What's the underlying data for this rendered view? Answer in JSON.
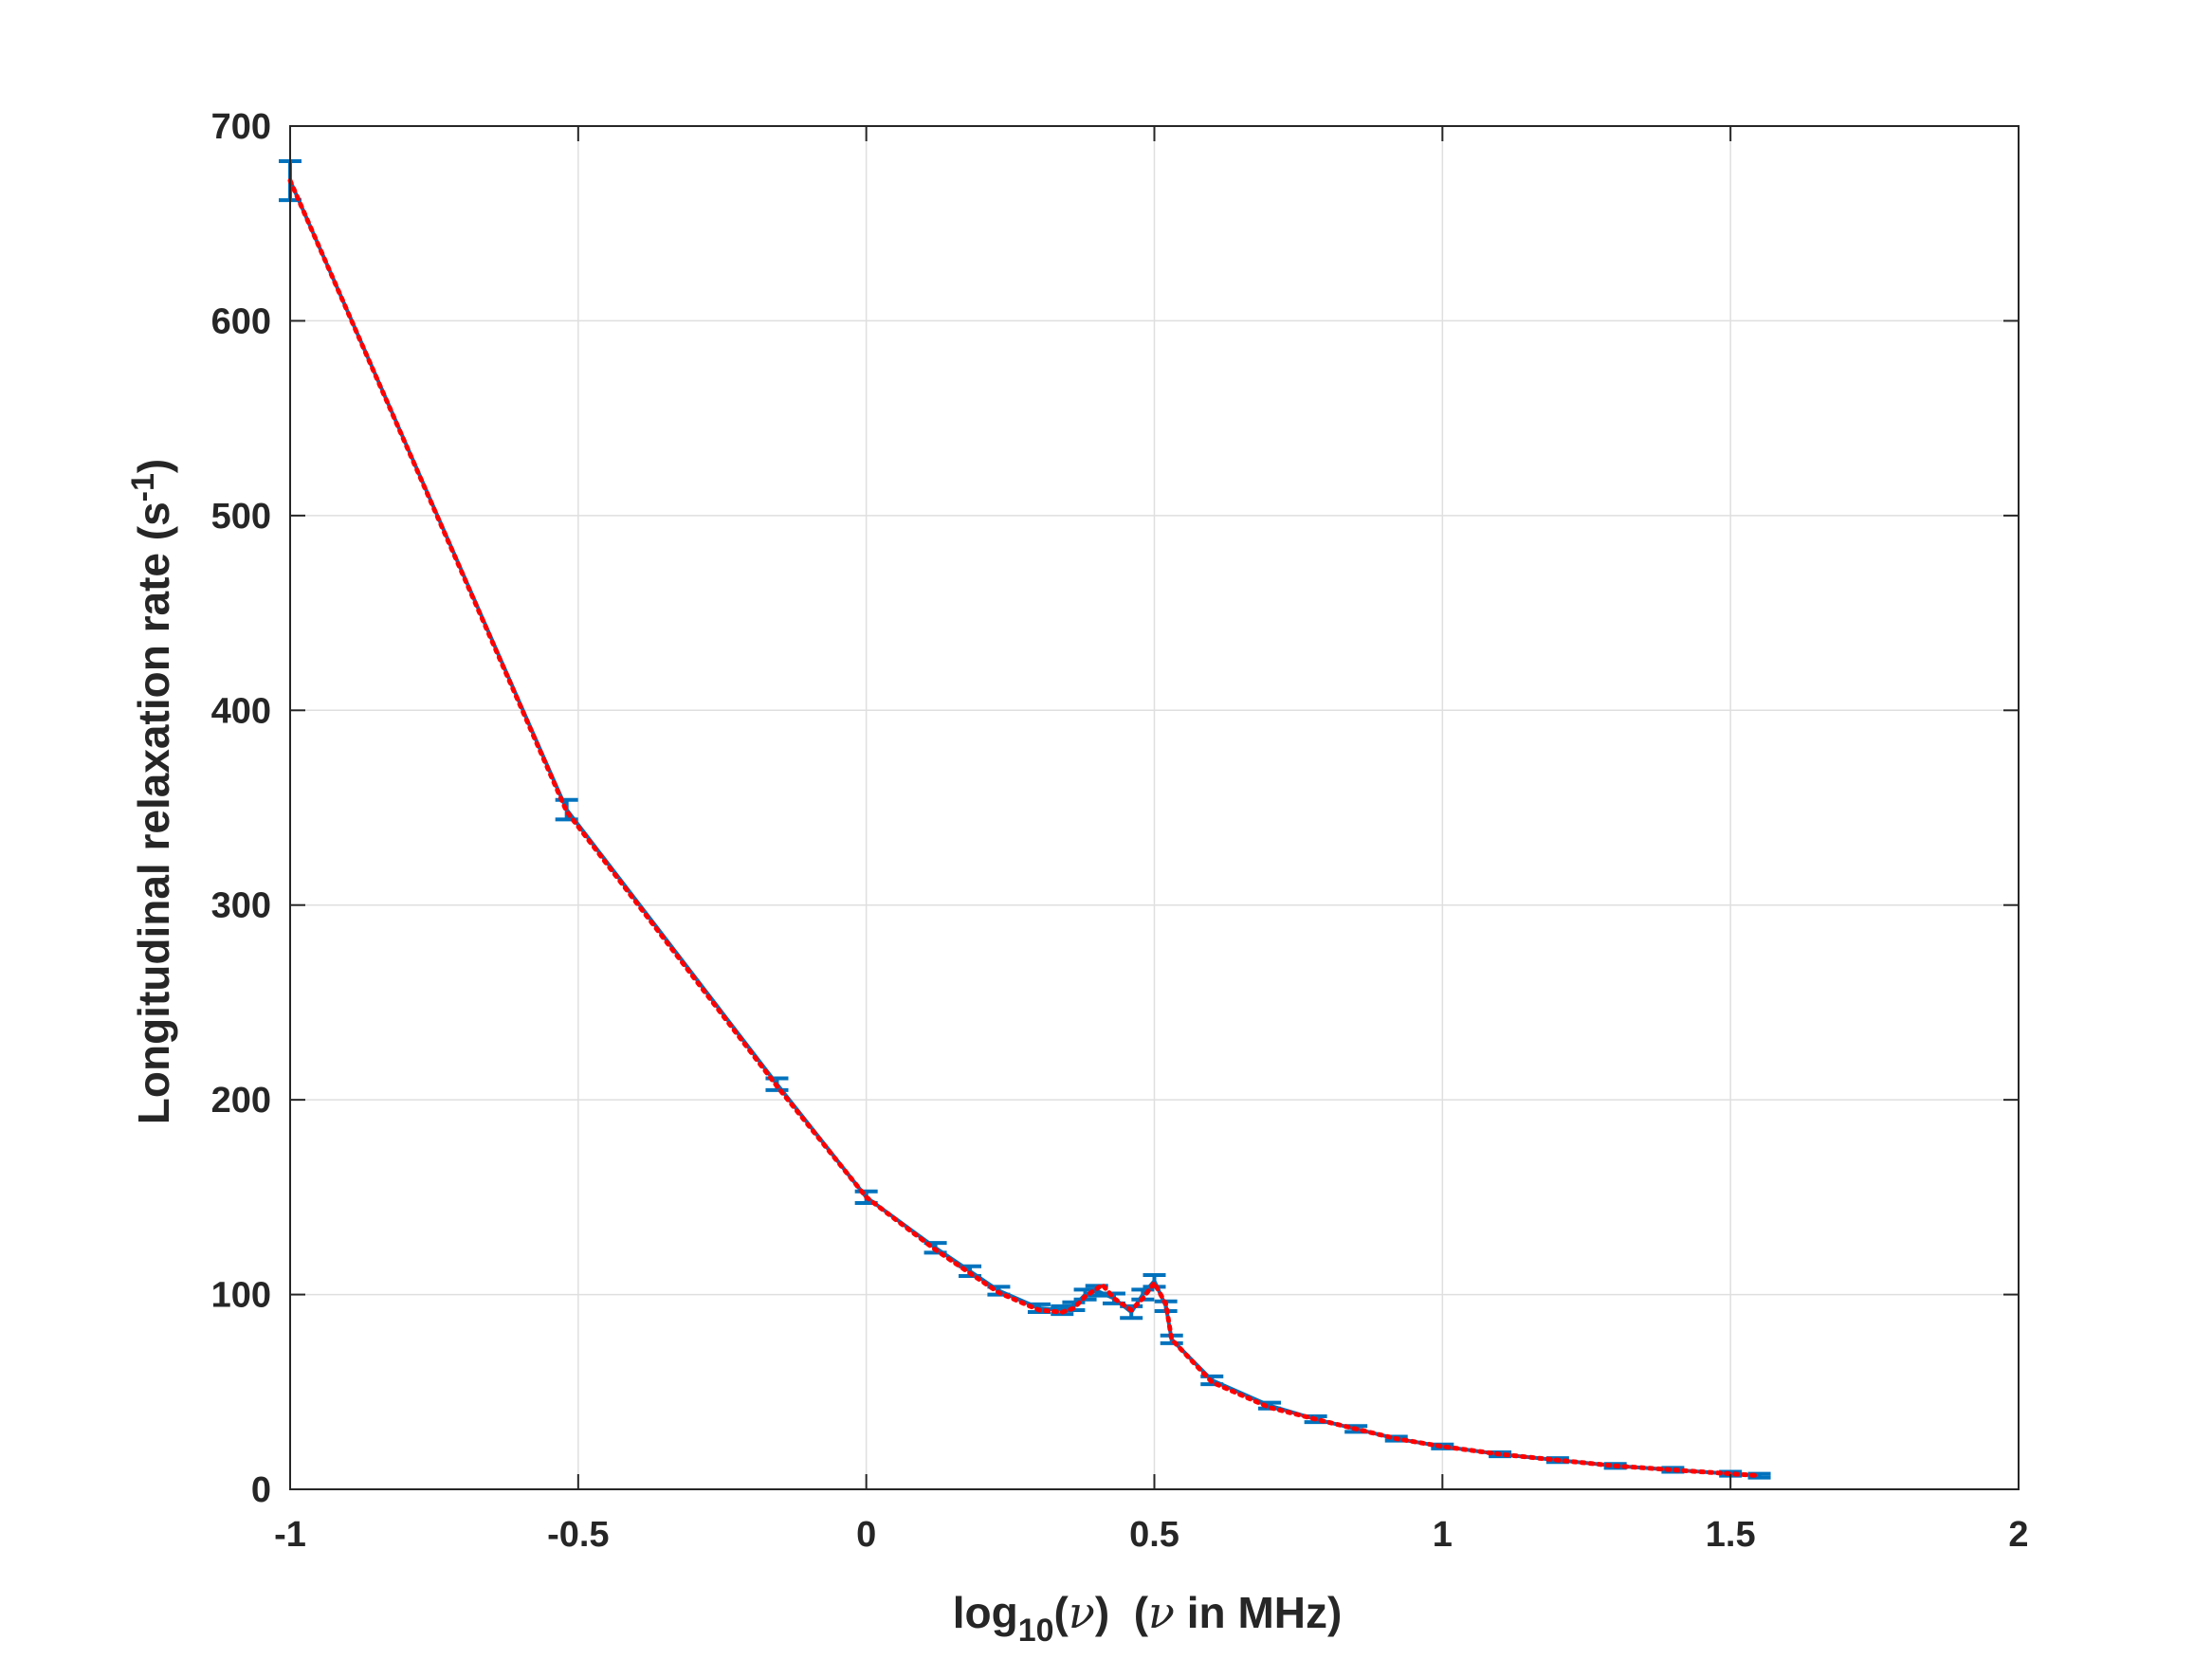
{
  "chart_data": {
    "type": "line",
    "title": "",
    "xlabel": {
      "prefix": "log",
      "subscript": "10",
      "open": "(",
      "symbol": "ν",
      "close": ")",
      "gap": "  (",
      "symbol2": "ν",
      "suffix": " in MHz)"
    },
    "ylabel": {
      "main": "Longitudinal relaxation rate (s",
      "superscript": "-1",
      "close": ")"
    },
    "xlim": [
      -1,
      2
    ],
    "ylim": [
      0,
      700
    ],
    "xticks": [
      "-1",
      "-0.5",
      "0",
      "0.5",
      "1",
      "1.5",
      "2"
    ],
    "xtick_values": [
      -1,
      -0.5,
      0,
      0.5,
      1,
      1.5,
      2
    ],
    "yticks": [
      "0",
      "100",
      "200",
      "300",
      "400",
      "500",
      "600",
      "700"
    ],
    "ytick_values": [
      0,
      100,
      200,
      300,
      400,
      500,
      600,
      700
    ],
    "grid": true,
    "box": true,
    "colors": {
      "measured": "#0072BD",
      "fit": "#FF0000",
      "axes": "#262626",
      "grid": "#DFDFDF"
    },
    "series": [
      {
        "style": "solid line with error bars",
        "x": [
          -1.0,
          -0.52,
          -0.155,
          0.0,
          0.12,
          0.18,
          0.23,
          0.3,
          0.34,
          0.36,
          0.38,
          0.4,
          0.43,
          0.46,
          0.48,
          0.5,
          0.52,
          0.53,
          0.6,
          0.7,
          0.78,
          0.85,
          0.92,
          1.0,
          1.1,
          1.2,
          1.3,
          1.4,
          1.5,
          1.55
        ],
        "y": [
          672,
          349,
          208,
          150,
          124,
          112,
          102,
          93,
          92,
          94,
          100,
          102,
          98,
          91,
          100,
          107,
          94,
          77,
          56,
          43,
          36,
          31,
          26,
          22,
          18,
          15,
          12,
          10,
          8,
          7
        ],
        "error": [
          10,
          5,
          3,
          3,
          2.5,
          2.5,
          2,
          2,
          2,
          2,
          2.5,
          2.5,
          2.5,
          3,
          2.5,
          3,
          2.5,
          2,
          2,
          1.5,
          1.5,
          1.5,
          1,
          1,
          1,
          1,
          1,
          1,
          1,
          1
        ]
      },
      {
        "style": "dotted line",
        "x": [
          -1.0,
          -0.52,
          -0.155,
          0.0,
          0.12,
          0.18,
          0.23,
          0.3,
          0.34,
          0.36,
          0.38,
          0.41,
          0.43,
          0.46,
          0.48,
          0.5,
          0.52,
          0.53,
          0.6,
          0.7,
          0.78,
          0.85,
          0.92,
          1.0,
          1.1,
          1.2,
          1.3,
          1.4,
          1.5,
          1.55
        ],
        "y": [
          672,
          348,
          207,
          150,
          123,
          111,
          101,
          92,
          91,
          93,
          99,
          105,
          98,
          92,
          98,
          106,
          95,
          77,
          55,
          42,
          36,
          31,
          26,
          22,
          18,
          15,
          12,
          10,
          8,
          7
        ]
      }
    ]
  }
}
